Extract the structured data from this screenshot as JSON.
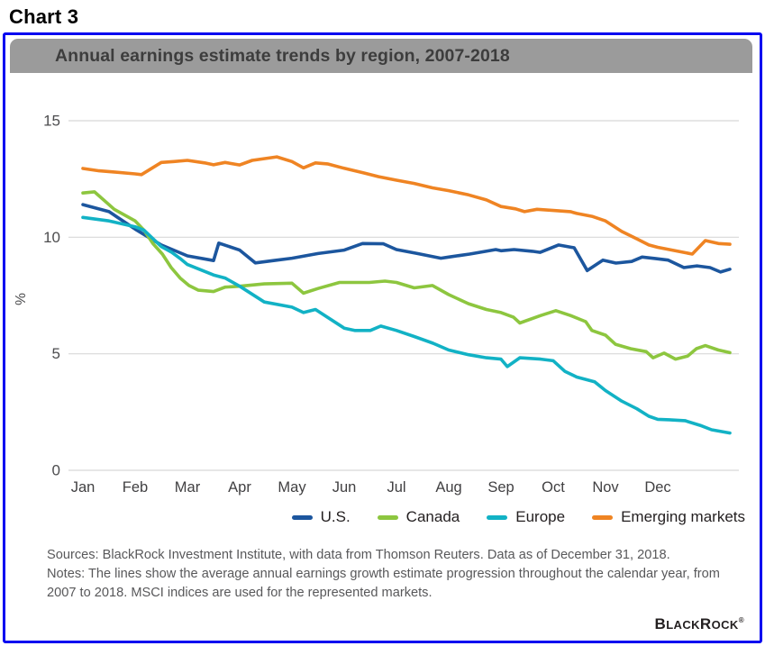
{
  "page": {
    "heading": "Chart 3"
  },
  "panel": {
    "title": "Annual earnings estimate trends by region, 2007-2018",
    "header_bg": "#9b9b9b",
    "border_color": "#0404f0"
  },
  "chart_data": {
    "type": "line",
    "title": "Annual earnings estimate trends by region, 2007-2018",
    "xlabel": "",
    "ylabel": "%",
    "ylim": [
      0,
      15
    ],
    "y_ticks": [
      0,
      5,
      10,
      15
    ],
    "x_categories": [
      "Jan",
      "Feb",
      "Mar",
      "Apr",
      "May",
      "Jun",
      "Jul",
      "Aug",
      "Sep",
      "Oct",
      "Nov",
      "Dec"
    ],
    "x_note": "x = month position, 0 = Jan tick through 11 = Dec tick; series run weekly to ~12.38 (end of December)",
    "grid": "horizontal",
    "legend_position": "bottom",
    "gridline_color": "#d8d8d8",
    "tick_label_color": "#4d4d4f",
    "series": [
      {
        "id": "us",
        "name": "U.S.",
        "color": "#1c569e",
        "points": [
          [
            0,
            11.4
          ],
          [
            0.5,
            11.1
          ],
          [
            1,
            10.35
          ],
          [
            1.5,
            9.67
          ],
          [
            2,
            9.2
          ],
          [
            2.5,
            9.0
          ],
          [
            2.6,
            9.75
          ],
          [
            3,
            9.45
          ],
          [
            3.3,
            8.9
          ],
          [
            3.65,
            9.0
          ],
          [
            4,
            9.1
          ],
          [
            4.5,
            9.3
          ],
          [
            5,
            9.45
          ],
          [
            5.35,
            9.73
          ],
          [
            5.75,
            9.72
          ],
          [
            6,
            9.47
          ],
          [
            6.4,
            9.3
          ],
          [
            6.85,
            9.1
          ],
          [
            7,
            9.15
          ],
          [
            7.4,
            9.28
          ],
          [
            7.9,
            9.47
          ],
          [
            8,
            9.42
          ],
          [
            8.25,
            9.47
          ],
          [
            8.6,
            9.4
          ],
          [
            8.75,
            9.35
          ],
          [
            9.1,
            9.67
          ],
          [
            9.4,
            9.55
          ],
          [
            9.65,
            8.57
          ],
          [
            9.95,
            9.02
          ],
          [
            10.2,
            8.89
          ],
          [
            10.5,
            8.96
          ],
          [
            10.7,
            9.15
          ],
          [
            10.95,
            9.09
          ],
          [
            11.2,
            9.02
          ],
          [
            11.5,
            8.7
          ],
          [
            11.75,
            8.77
          ],
          [
            12.0,
            8.7
          ],
          [
            12.2,
            8.51
          ],
          [
            12.38,
            8.63
          ]
        ]
      },
      {
        "id": "canada",
        "name": "Canada",
        "color": "#8dc63f",
        "points": [
          [
            0,
            11.9
          ],
          [
            0.22,
            11.95
          ],
          [
            0.6,
            11.2
          ],
          [
            1,
            10.7
          ],
          [
            1.17,
            10.3
          ],
          [
            1.34,
            9.73
          ],
          [
            1.52,
            9.28
          ],
          [
            1.69,
            8.7
          ],
          [
            1.86,
            8.25
          ],
          [
            2.03,
            7.93
          ],
          [
            2.21,
            7.73
          ],
          [
            2.5,
            7.67
          ],
          [
            2.72,
            7.86
          ],
          [
            3,
            7.9
          ],
          [
            3.47,
            8.0
          ],
          [
            4,
            8.03
          ],
          [
            4.22,
            7.6
          ],
          [
            4.5,
            7.8
          ],
          [
            4.91,
            8.06
          ],
          [
            5.48,
            8.06
          ],
          [
            5.78,
            8.12
          ],
          [
            6,
            8.06
          ],
          [
            6.34,
            7.83
          ],
          [
            6.69,
            7.93
          ],
          [
            7,
            7.54
          ],
          [
            7.38,
            7.15
          ],
          [
            7.72,
            6.9
          ],
          [
            8,
            6.77
          ],
          [
            8.24,
            6.57
          ],
          [
            8.36,
            6.32
          ],
          [
            8.76,
            6.64
          ],
          [
            9.05,
            6.85
          ],
          [
            9.33,
            6.64
          ],
          [
            9.62,
            6.38
          ],
          [
            9.74,
            6.0
          ],
          [
            10,
            5.8
          ],
          [
            10.19,
            5.41
          ],
          [
            10.48,
            5.22
          ],
          [
            10.78,
            5.09
          ],
          [
            10.91,
            4.83
          ],
          [
            11.12,
            5.03
          ],
          [
            11.34,
            4.77
          ],
          [
            11.57,
            4.9
          ],
          [
            11.74,
            5.22
          ],
          [
            11.91,
            5.35
          ],
          [
            12.16,
            5.16
          ],
          [
            12.38,
            5.05
          ]
        ]
      },
      {
        "id": "europe",
        "name": "Europe",
        "color": "#12b2c5",
        "points": [
          [
            0,
            10.85
          ],
          [
            0.5,
            10.7
          ],
          [
            1,
            10.45
          ],
          [
            1.17,
            10.3
          ],
          [
            1.5,
            9.6
          ],
          [
            1.7,
            9.35
          ],
          [
            1.86,
            9.09
          ],
          [
            2,
            8.83
          ],
          [
            2.5,
            8.38
          ],
          [
            2.72,
            8.25
          ],
          [
            3,
            7.9
          ],
          [
            3.47,
            7.22
          ],
          [
            4,
            7.0
          ],
          [
            4.22,
            6.77
          ],
          [
            4.45,
            6.9
          ],
          [
            5,
            6.1
          ],
          [
            5.2,
            6.0
          ],
          [
            5.5,
            6.0
          ],
          [
            5.7,
            6.19
          ],
          [
            6,
            6.0
          ],
          [
            6.34,
            5.74
          ],
          [
            6.7,
            5.45
          ],
          [
            7,
            5.16
          ],
          [
            7.38,
            4.96
          ],
          [
            7.72,
            4.83
          ],
          [
            8,
            4.77
          ],
          [
            8.12,
            4.45
          ],
          [
            8.36,
            4.83
          ],
          [
            8.76,
            4.77
          ],
          [
            9,
            4.7
          ],
          [
            9.22,
            4.25
          ],
          [
            9.45,
            4.0
          ],
          [
            9.79,
            3.8
          ],
          [
            10,
            3.42
          ],
          [
            10.31,
            2.97
          ],
          [
            10.6,
            2.64
          ],
          [
            10.83,
            2.32
          ],
          [
            11,
            2.19
          ],
          [
            11.22,
            2.17
          ],
          [
            11.52,
            2.13
          ],
          [
            11.81,
            1.93
          ],
          [
            12.03,
            1.74
          ],
          [
            12.38,
            1.6
          ]
        ]
      },
      {
        "id": "emerging-markets",
        "name": "Emerging markets",
        "color": "#ef8423",
        "points": [
          [
            0,
            12.95
          ],
          [
            0.31,
            12.85
          ],
          [
            0.6,
            12.8
          ],
          [
            1,
            12.72
          ],
          [
            1.12,
            12.69
          ],
          [
            1.5,
            13.21
          ],
          [
            1.74,
            13.25
          ],
          [
            2,
            13.3
          ],
          [
            2.33,
            13.19
          ],
          [
            2.5,
            13.11
          ],
          [
            2.72,
            13.21
          ],
          [
            3,
            13.1
          ],
          [
            3.24,
            13.3
          ],
          [
            3.71,
            13.45
          ],
          [
            4,
            13.25
          ],
          [
            4.22,
            12.98
          ],
          [
            4.45,
            13.19
          ],
          [
            4.68,
            13.15
          ],
          [
            5,
            12.96
          ],
          [
            5.37,
            12.76
          ],
          [
            5.66,
            12.6
          ],
          [
            6,
            12.45
          ],
          [
            6.34,
            12.31
          ],
          [
            6.69,
            12.12
          ],
          [
            7,
            12.0
          ],
          [
            7.38,
            11.82
          ],
          [
            7.72,
            11.6
          ],
          [
            8,
            11.32
          ],
          [
            8.28,
            11.22
          ],
          [
            8.45,
            11.1
          ],
          [
            8.69,
            11.2
          ],
          [
            9,
            11.15
          ],
          [
            9.33,
            11.1
          ],
          [
            9.45,
            11.02
          ],
          [
            9.74,
            10.9
          ],
          [
            10,
            10.7
          ],
          [
            10.31,
            10.25
          ],
          [
            10.6,
            9.93
          ],
          [
            10.83,
            9.67
          ],
          [
            11,
            9.57
          ],
          [
            11.22,
            9.47
          ],
          [
            11.66,
            9.28
          ],
          [
            11.91,
            9.86
          ],
          [
            12.16,
            9.73
          ],
          [
            12.38,
            9.7
          ]
        ]
      }
    ]
  },
  "footer": {
    "sources": "Sources: BlackRock Investment Institute, with data from Thomson Reuters. Data as of December 31, 2018.",
    "notes": "Notes: The lines show the average annual earnings growth estimate progression throughout the calendar year, from 2007 to 2018. MSCI indices are used for the represented markets.",
    "brand": {
      "b1": "B",
      "rest1": "LACK",
      "b2": "R",
      "rest2": "OCK",
      "reg": "®"
    }
  }
}
